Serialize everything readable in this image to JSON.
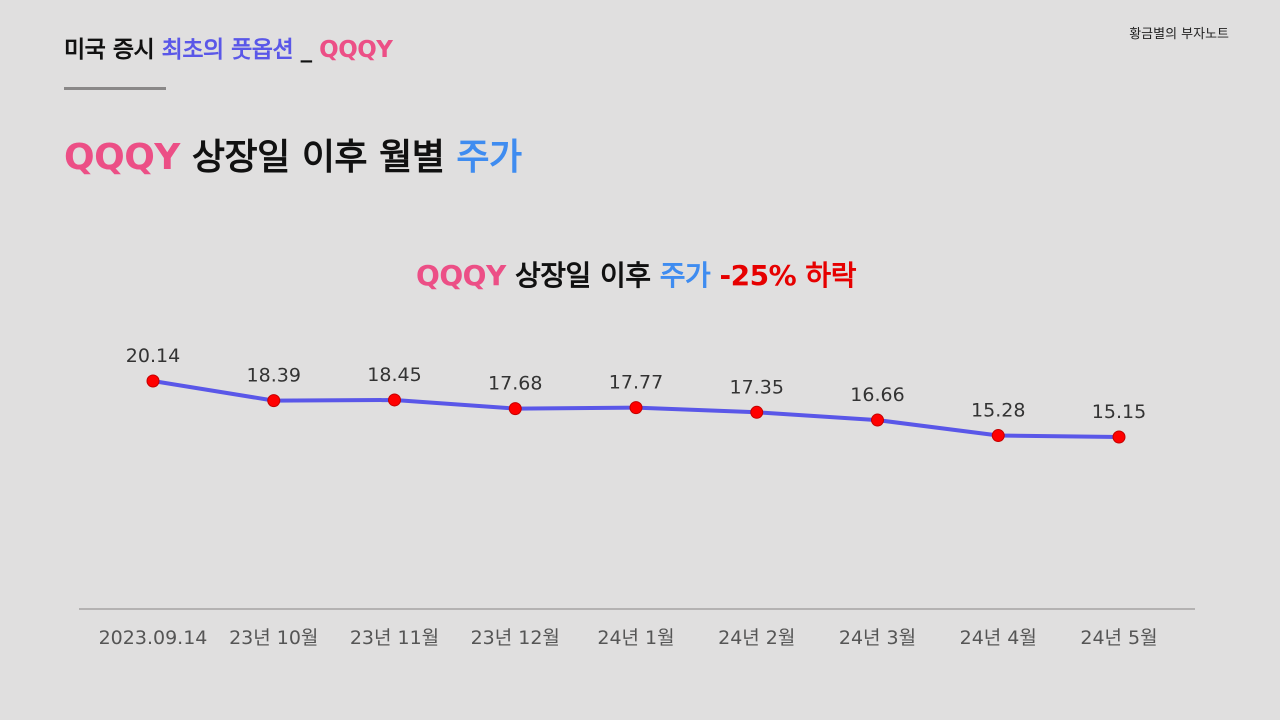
{
  "header": {
    "part1": "미국 증시 ",
    "part2": "최초의 풋옵션",
    "part3": " _ ",
    "part4": "QQQY"
  },
  "brand": "황금별의 부자노트",
  "heading": {
    "part1": "QQQY",
    "part2": " 상장일 이후 월별 ",
    "part3": "주가"
  },
  "chart_title": {
    "part1": "QQQY",
    "part2": " 상장일 이후 ",
    "part3": "주가",
    "part4": " -25% 하락"
  },
  "colors": {
    "line": "#5a57e8",
    "marker": "#ff0000",
    "marker_stroke": "#c40000",
    "pink": "#ec4f86",
    "blue": "#5a57e8",
    "sky": "#3f8cf0",
    "red": "#e60000",
    "axis": "#9a9898"
  },
  "chart_data": {
    "type": "line",
    "title": "QQQY 상장일 이후 주가 -25% 하락",
    "xlabel": "",
    "ylabel": "",
    "categories": [
      "2023.09.14",
      "23년 10월",
      "23년 11월",
      "23년 12월",
      "24년 1월",
      "24년 2월",
      "24년 3월",
      "24년 4월",
      "24년 5월"
    ],
    "series": [
      {
        "name": "QQQY",
        "values": [
          20.14,
          18.39,
          18.45,
          17.68,
          17.77,
          17.35,
          16.66,
          15.28,
          15.15
        ]
      }
    ],
    "value_labels": [
      "20.14",
      "18.39",
      "18.45",
      "17.68",
      "17.77",
      "17.35",
      "16.66",
      "15.28",
      "15.15"
    ],
    "ylim": [
      0,
      22
    ],
    "grid": false,
    "legend": "none"
  }
}
